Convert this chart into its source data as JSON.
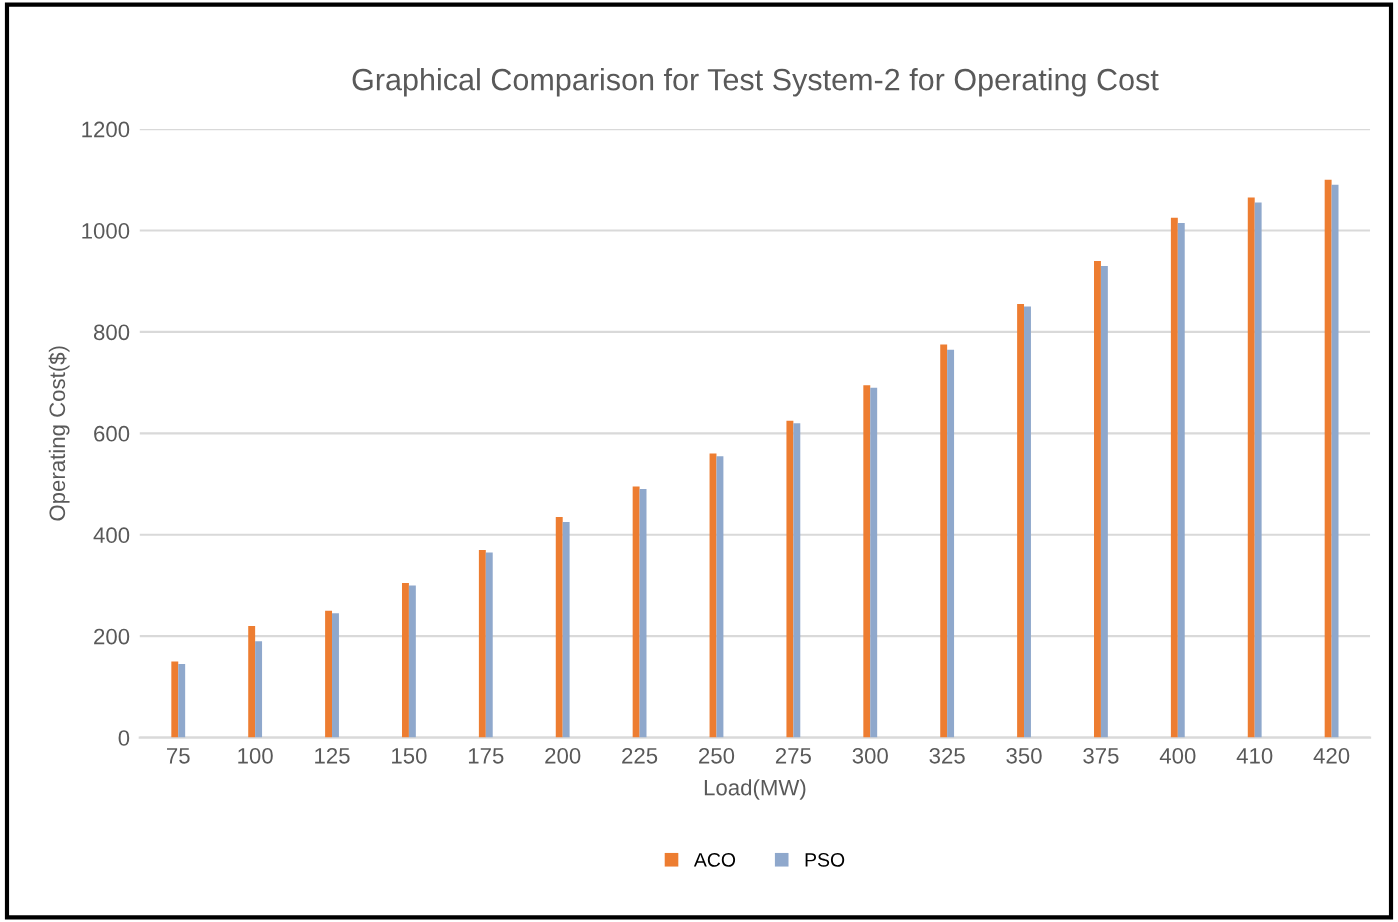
{
  "chart_data": {
    "type": "bar",
    "title": "Graphical Comparison for Test System-2 for Operating Cost",
    "xlabel": "Load(MW)",
    "ylabel": "Operating Cost($)",
    "categories": [
      "75",
      "100",
      "125",
      "150",
      "175",
      "200",
      "225",
      "250",
      "275",
      "300",
      "325",
      "350",
      "375",
      "400",
      "410",
      "420"
    ],
    "series": [
      {
        "name": "ACO",
        "color": "#ed7d31",
        "values": [
          150,
          220,
          250,
          305,
          370,
          435,
          495,
          560,
          625,
          695,
          775,
          855,
          940,
          1025,
          1065,
          1100
        ]
      },
      {
        "name": "PSO",
        "color": "#8fa8cc",
        "values": [
          145,
          190,
          245,
          300,
          365,
          425,
          490,
          555,
          620,
          690,
          765,
          850,
          930,
          1015,
          1055,
          1090
        ]
      }
    ],
    "ylim": [
      0,
      1200
    ],
    "yticks": [
      0,
      200,
      400,
      600,
      800,
      1000,
      1200
    ],
    "grid": "y",
    "legend": "bottom"
  }
}
